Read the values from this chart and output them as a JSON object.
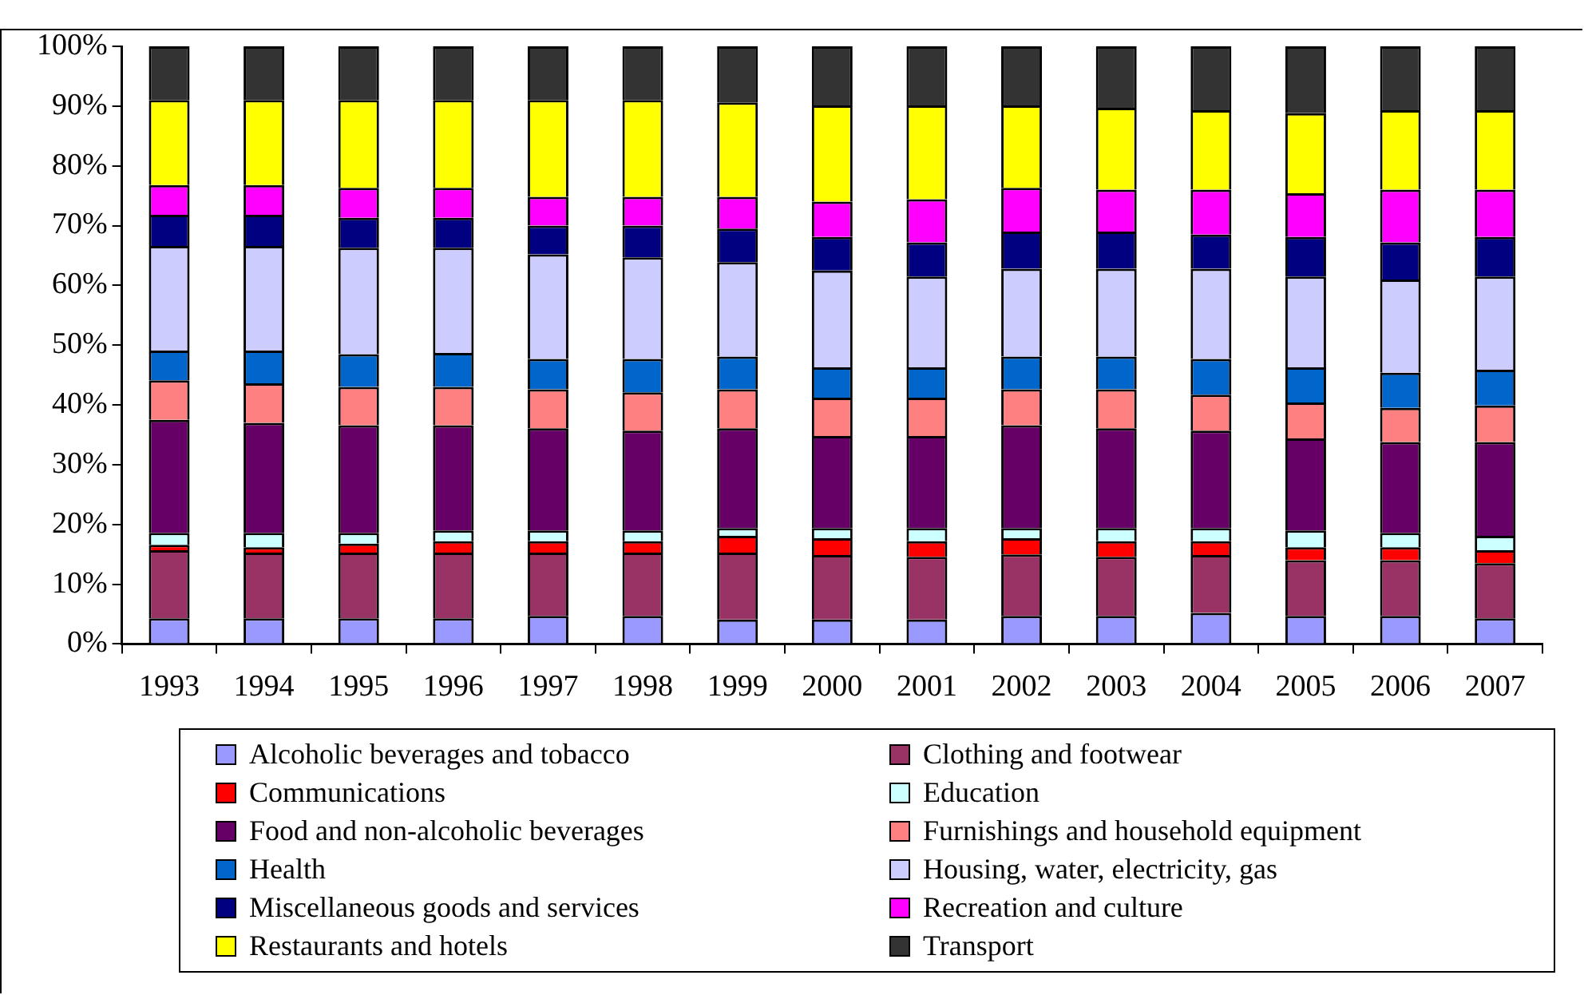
{
  "chart_data": {
    "type": "bar",
    "stacked": true,
    "legend": "bottom",
    "grid": false,
    "categories": [
      "1993",
      "1994",
      "1995",
      "1996",
      "1997",
      "1998",
      "1999",
      "2000",
      "2001",
      "2002",
      "2003",
      "2004",
      "2005",
      "2006",
      "2007"
    ],
    "ylim": [
      0,
      100
    ],
    "yticks": [
      {
        "value": 0,
        "label": "0%"
      },
      {
        "value": 10,
        "label": "10%"
      },
      {
        "value": 20,
        "label": "20%"
      },
      {
        "value": 30,
        "label": "30%"
      },
      {
        "value": 40,
        "label": "40%"
      },
      {
        "value": 50,
        "label": "50%"
      },
      {
        "value": 60,
        "label": "60%"
      },
      {
        "value": 70,
        "label": "70%"
      },
      {
        "value": 80,
        "label": "80%"
      },
      {
        "value": 90,
        "label": "90%"
      },
      {
        "value": 100,
        "label": "100%"
      }
    ],
    "series": [
      {
        "name": "Alcoholic beverages and tobacco",
        "color": "#9999ff",
        "values": [
          4.3,
          4.3,
          4.3,
          4.3,
          4.7,
          4.7,
          4.1,
          4.1,
          4.1,
          4.7,
          4.7,
          5.2,
          4.7,
          4.7,
          4.3
        ]
      },
      {
        "name": "Clothing and footwear",
        "color": "#993366",
        "values": [
          11.4,
          11.0,
          11.0,
          11.0,
          10.6,
          10.6,
          11.2,
          10.8,
          10.5,
          10.3,
          9.9,
          9.7,
          9.3,
          9.3,
          9.2
        ]
      },
      {
        "name": "Communications",
        "color": "#ff0000",
        "values": [
          0.9,
          0.9,
          1.5,
          1.9,
          1.9,
          1.9,
          2.8,
          2.8,
          2.6,
          2.7,
          2.6,
          2.3,
          2.2,
          2.2,
          2.2
        ]
      },
      {
        "name": "Education",
        "color": "#ccffff",
        "values": [
          2.0,
          2.4,
          1.8,
          1.8,
          1.8,
          1.8,
          1.3,
          1.7,
          2.2,
          1.7,
          2.2,
          2.2,
          2.8,
          2.4,
          2.4
        ]
      },
      {
        "name": "Food and non-alcoholic beverages",
        "color": "#660066",
        "values": [
          18.9,
          18.4,
          18.0,
          17.6,
          17.1,
          16.7,
          16.7,
          15.4,
          15.4,
          17.2,
          16.7,
          16.3,
          15.4,
          15.2,
          15.7
        ]
      },
      {
        "name": "Furnishings and household equipment",
        "color": "#ff8080",
        "values": [
          6.6,
          6.6,
          6.4,
          6.4,
          6.5,
          6.4,
          6.5,
          6.4,
          6.4,
          6.0,
          6.5,
          6.0,
          6.0,
          5.7,
          6.1
        ]
      },
      {
        "name": "Health",
        "color": "#0066cc",
        "values": [
          5.0,
          5.5,
          5.5,
          5.7,
          5.1,
          5.6,
          5.5,
          5.1,
          5.1,
          5.5,
          5.5,
          6.0,
          5.9,
          5.9,
          6.0
        ]
      },
      {
        "name": "Housing, water, electricity, gas",
        "color": "#ccccff",
        "values": [
          17.5,
          17.5,
          17.8,
          17.6,
          17.5,
          17.0,
          15.8,
          16.2,
          15.2,
          14.7,
          14.7,
          15.1,
          15.2,
          15.6,
          15.6
        ]
      },
      {
        "name": "Miscellaneous goods and services",
        "color": "#000080",
        "values": [
          5.2,
          5.2,
          5.0,
          5.0,
          4.8,
          5.3,
          5.6,
          5.6,
          5.7,
          6.2,
          6.2,
          5.7,
          6.6,
          6.2,
          6.6
        ]
      },
      {
        "name": "Recreation and culture",
        "color": "#ff00ff",
        "values": [
          5.0,
          5.0,
          5.0,
          5.0,
          4.8,
          4.8,
          5.3,
          5.9,
          7.2,
          7.3,
          7.0,
          7.5,
          7.3,
          8.8,
          7.9
        ]
      },
      {
        "name": "Restaurants and hotels",
        "color": "#ffff00",
        "values": [
          14.2,
          14.2,
          14.7,
          14.7,
          16.2,
          16.2,
          15.8,
          16.1,
          15.7,
          13.8,
          13.7,
          13.3,
          13.4,
          13.3,
          13.3
        ]
      },
      {
        "name": "Transport",
        "color": "#333333",
        "values": [
          9.0,
          9.0,
          9.0,
          9.0,
          9.0,
          9.0,
          9.4,
          9.9,
          9.9,
          9.9,
          10.3,
          10.7,
          11.2,
          10.7,
          10.7
        ]
      }
    ]
  }
}
